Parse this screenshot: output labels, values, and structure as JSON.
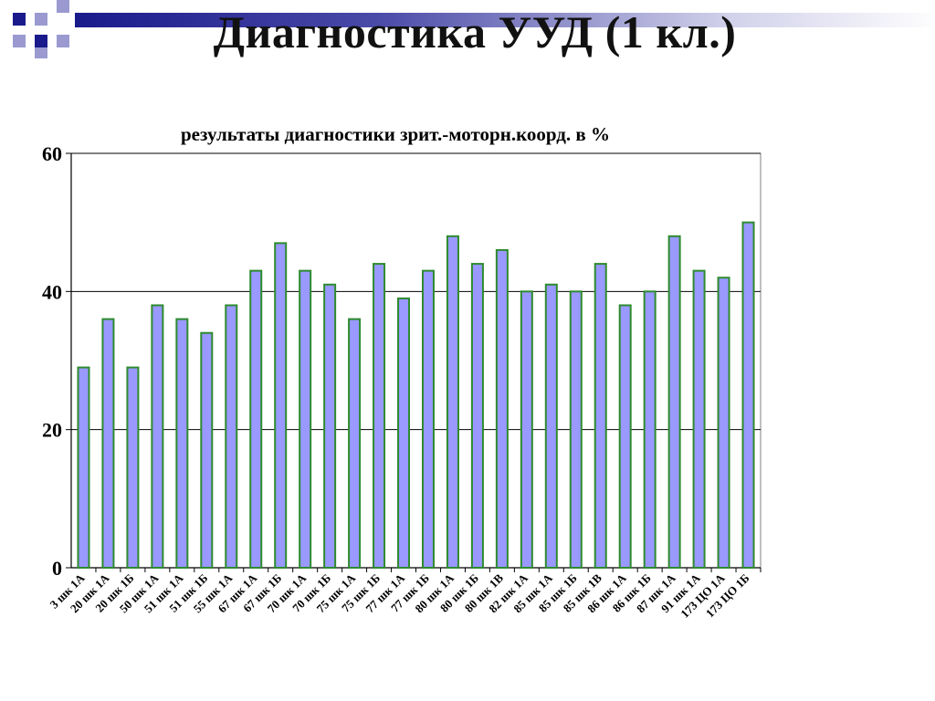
{
  "slide": {
    "title": "Диагностика УУД (1 кл.)"
  },
  "colors": {
    "bar_fill": "#9999ff",
    "bar_stroke": "#2e8b2e",
    "deco_navy": "#1a1a8c",
    "deco_light": "#9a9ad0",
    "gridline": "#000000"
  },
  "chart_data": {
    "type": "bar",
    "title": "результаты диагностики зрит.-моторн.коорд. в %",
    "xlabel": "",
    "ylabel": "",
    "ylim": [
      0,
      60
    ],
    "yticks": [
      0,
      20,
      40,
      60
    ],
    "grid": true,
    "legend": "none",
    "categories": [
      "3 шк 1А",
      "20 шк 1А",
      "20 шк 1Б",
      "50 шк 1А",
      "51 шк 1А",
      "51 шк 1Б",
      "55 шк 1А",
      "67 шк 1А",
      "67 шк 1Б",
      "70 шк 1А",
      "70 шк 1Б",
      "75 шк 1А",
      "75 шк 1Б",
      "77 шк 1А",
      "77 шк 1Б",
      "80 шк 1А",
      "80 шк 1Б",
      "80 шк 1В",
      "82 шк 1А",
      "85 шк 1А",
      "85 шк 1Б",
      "85 шк 1В",
      "86 шк 1А",
      "86 шк 1Б",
      "87 шк 1А",
      "91 шк 1А",
      "173 ЦО 1А",
      "173 ЦО 1Б"
    ],
    "values": [
      29,
      36,
      29,
      38,
      36,
      34,
      38,
      43,
      47,
      43,
      41,
      36,
      44,
      39,
      43,
      48,
      44,
      46,
      40,
      41,
      40,
      44,
      38,
      40,
      48,
      43,
      42,
      50
    ]
  }
}
